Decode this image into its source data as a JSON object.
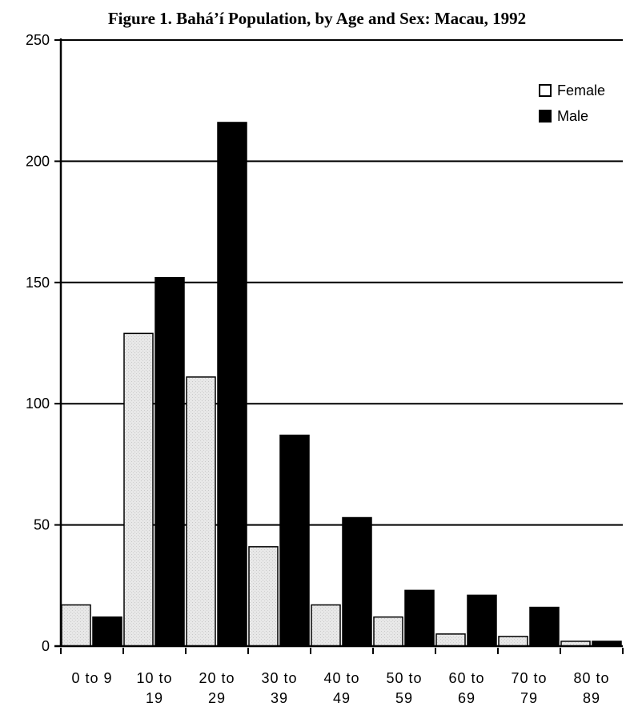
{
  "chart_data": {
    "type": "bar",
    "title": "Figure 1.  Bahá’í Population, by Age and Sex:  Macau, 1992",
    "xlabel": "",
    "ylabel": "",
    "ylim": [
      0,
      250
    ],
    "yticks": [
      0,
      50,
      100,
      150,
      200,
      250
    ],
    "grid": true,
    "legend_position": "top-right",
    "categories": [
      [
        "0 to 9",
        ""
      ],
      [
        "10 to",
        "19"
      ],
      [
        "20 to",
        "29"
      ],
      [
        "30 to",
        "39"
      ],
      [
        "40 to",
        "49"
      ],
      [
        "50 to",
        "59"
      ],
      [
        "60 to",
        "69"
      ],
      [
        "70 to",
        "79"
      ],
      [
        "80 to",
        "89"
      ]
    ],
    "series": [
      {
        "name": "Female",
        "color": "#e6e6e6",
        "values": [
          17,
          129,
          111,
          41,
          17,
          12,
          5,
          4,
          2
        ]
      },
      {
        "name": "Male",
        "color": "#000000",
        "values": [
          12,
          152,
          216,
          87,
          53,
          23,
          21,
          16,
          2
        ]
      }
    ]
  }
}
